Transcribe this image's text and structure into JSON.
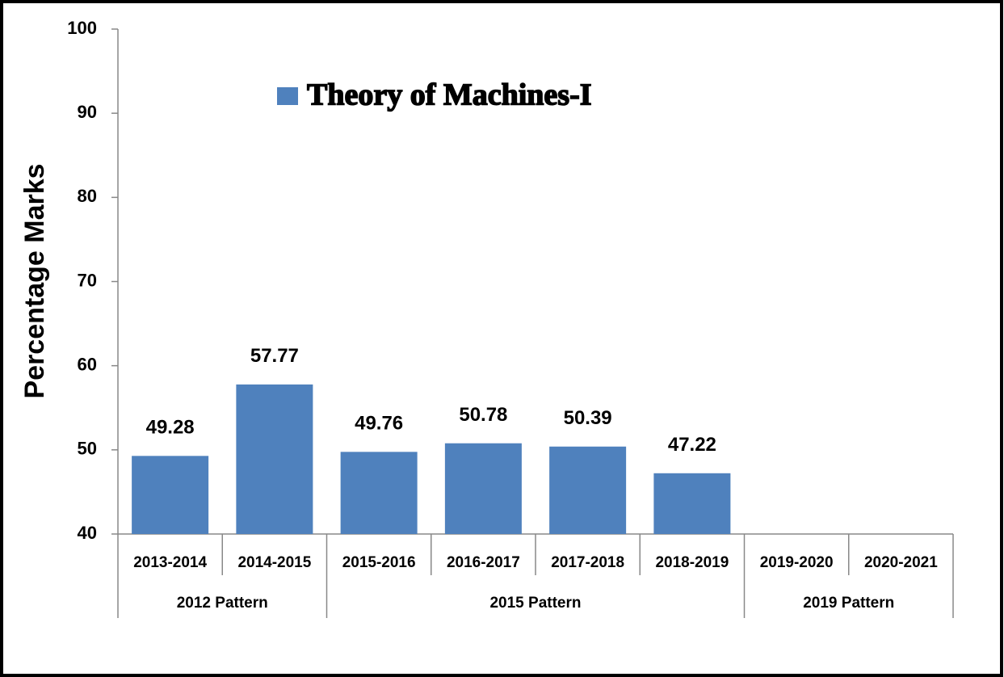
{
  "chart_data": {
    "type": "bar",
    "y_label": "Percentage Marks",
    "categories": [
      "2013-2014",
      "2014-2015",
      "2015-2016",
      "2016-2017",
      "2017-2018",
      "2018-2019",
      "2019-2020",
      "2020-2021"
    ],
    "groups": [
      {
        "label": "2012 Pattern",
        "span": 2
      },
      {
        "label": "2015 Pattern",
        "span": 4
      },
      {
        "label": "2019 Pattern",
        "span": 2
      }
    ],
    "series": [
      {
        "name": "Theory of Machines-I",
        "color": "#4f81bd",
        "values": [
          49.28,
          57.77,
          49.76,
          50.78,
          50.39,
          47.22,
          null,
          null
        ]
      }
    ],
    "ylim": [
      40,
      100
    ],
    "yticks": [
      40,
      50,
      60,
      70,
      80,
      90,
      100
    ],
    "legend": "top"
  }
}
